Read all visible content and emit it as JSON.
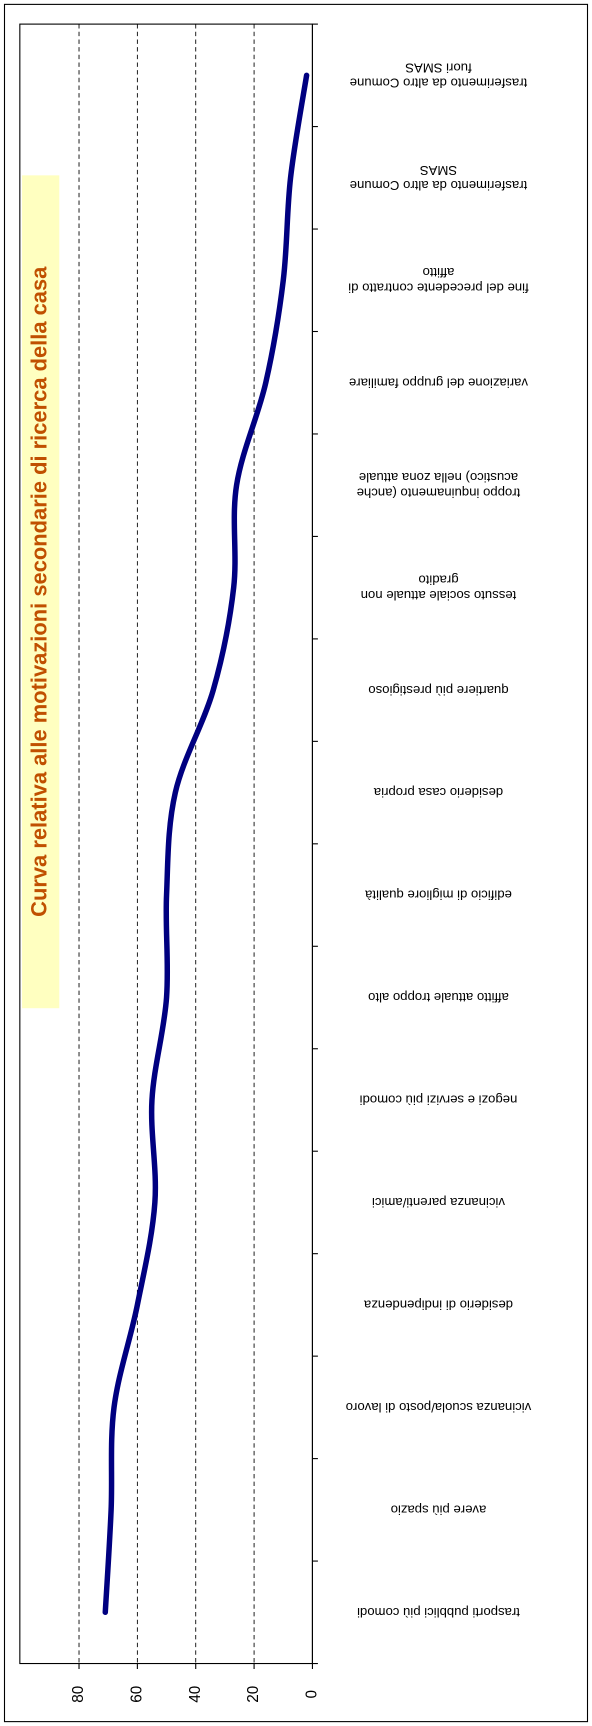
{
  "chart_data": {
    "type": "line",
    "title": "Curva relativa alle motivazioni secondarie di ricerca della casa",
    "categories": [
      "trasporti pubblici più comodi",
      "avere più spazio",
      "vicinanza scuola/posto di lavoro",
      "desiderio di indipendenza",
      "vicinanza parenti/amici",
      "negozi e servizi più comodi",
      "affitto attuale troppo alto",
      "edificio di migliore qualità",
      "desiderio casa propria",
      "quartiere più prestigioso",
      "tessuto sociale attuale non gradito",
      "troppo inquinamento (anche acustico) nella zona attuale",
      "variazione del gruppo familiare",
      "fine del precedente contratto di affitto",
      "trasferimento da altro Comune SMAS",
      "trasferimento da altro Comune fuori SMAS"
    ],
    "values": [
      71,
      69,
      68,
      60,
      54,
      55,
      50,
      50,
      47,
      34,
      27,
      26,
      16,
      10,
      7.5,
      2
    ],
    "color": "#000080",
    "ylim": [
      0,
      80
    ],
    "yticks": [
      0,
      20,
      40,
      60,
      80
    ],
    "grid": true
  }
}
